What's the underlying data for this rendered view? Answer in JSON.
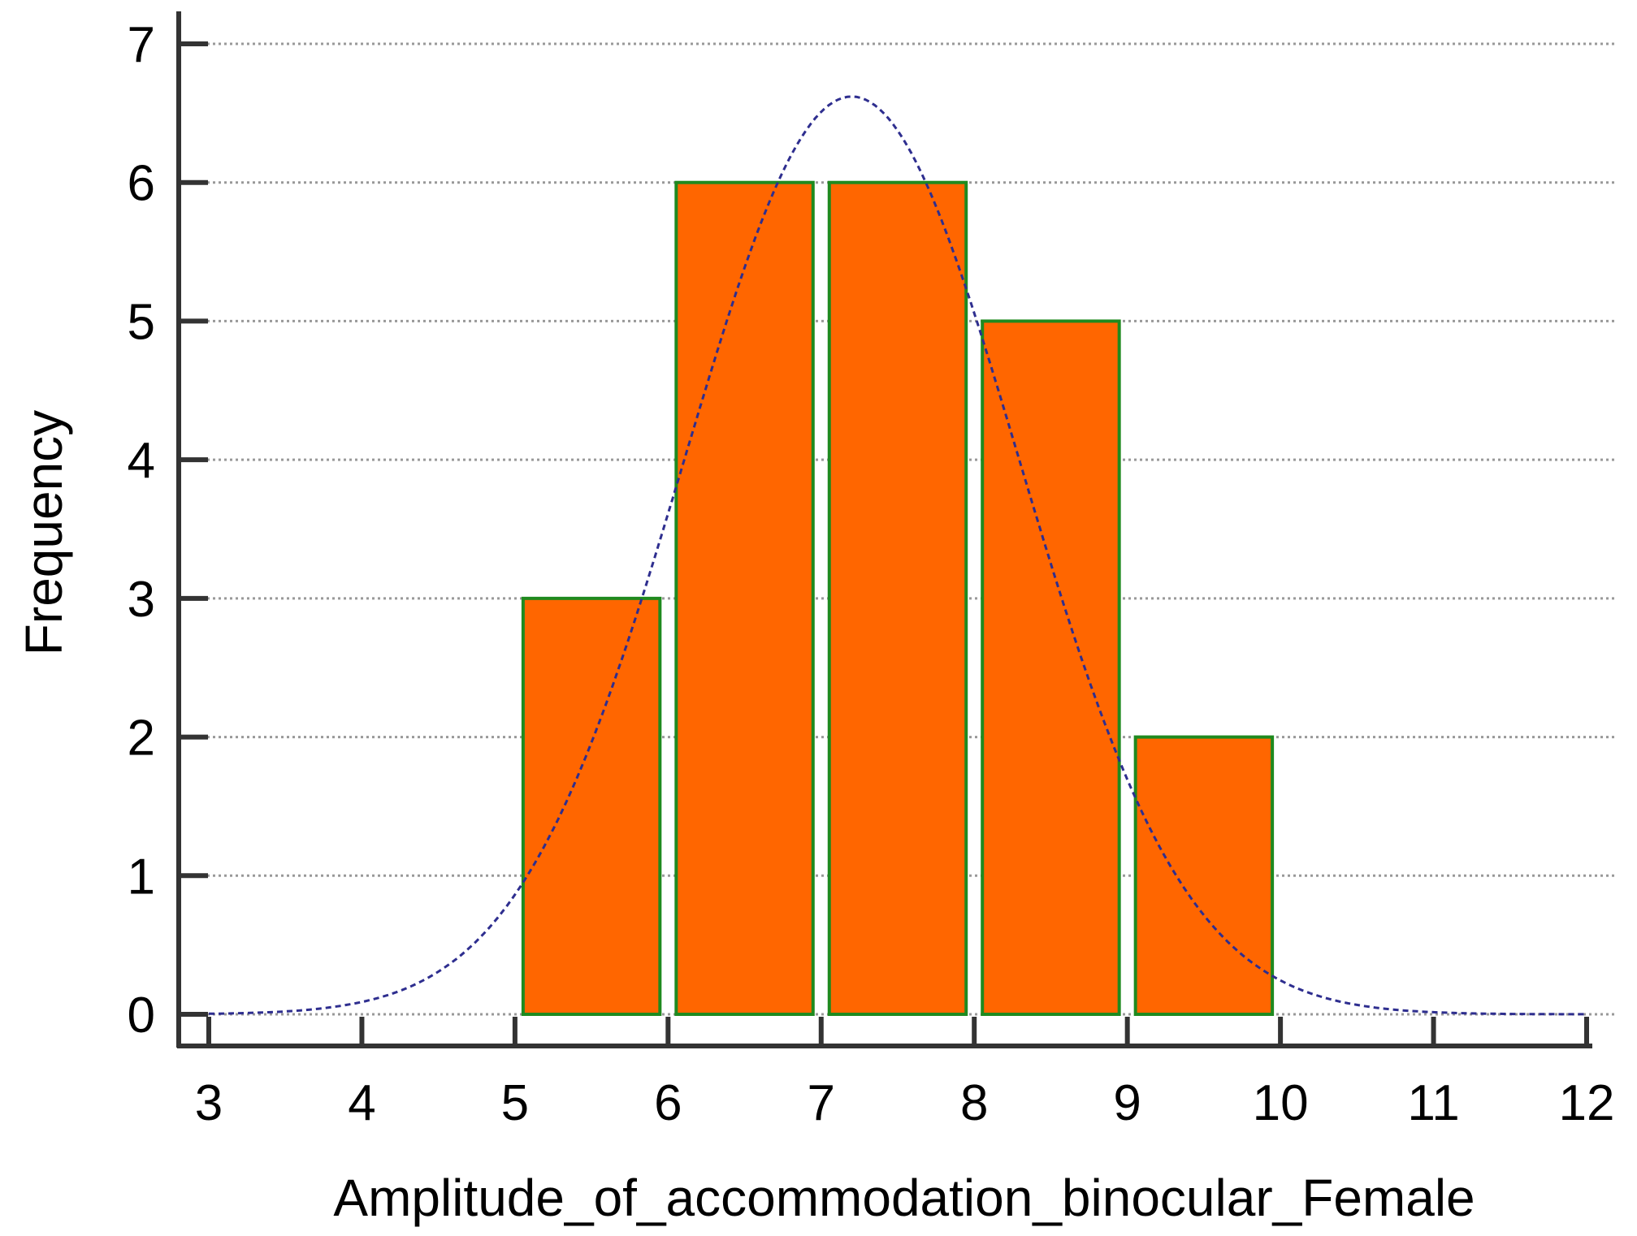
{
  "chart_data": {
    "type": "bar",
    "subtype": "histogram",
    "title": "",
    "xlabel": "Amplitude_of_accommodation_binocular_Female",
    "ylabel": "Frequency",
    "xlim": [
      3,
      12
    ],
    "ylim": [
      0,
      7
    ],
    "x_ticks": [
      3,
      4,
      5,
      6,
      7,
      8,
      9,
      10,
      11,
      12
    ],
    "y_ticks": [
      0,
      1,
      2,
      3,
      4,
      5,
      6,
      7
    ],
    "grid": {
      "horizontal": true,
      "vertical": false,
      "style": "dotted"
    },
    "bins": [
      {
        "start": 5,
        "end": 6,
        "value": 3
      },
      {
        "start": 6,
        "end": 7,
        "value": 6
      },
      {
        "start": 7,
        "end": 8,
        "value": 6
      },
      {
        "start": 8,
        "end": 9,
        "value": 5
      },
      {
        "start": 9,
        "end": 10,
        "value": 2
      }
    ],
    "normal_curve": {
      "style": "dashed",
      "peak_x": 7.2,
      "peak_y": 6.62,
      "sd": 1.09
    },
    "colors": {
      "bar_fill": "#ff6600",
      "bar_stroke": "#1f8a1f",
      "curve": "#2e2e8f",
      "axis": "#333333",
      "grid": "#999999"
    }
  }
}
